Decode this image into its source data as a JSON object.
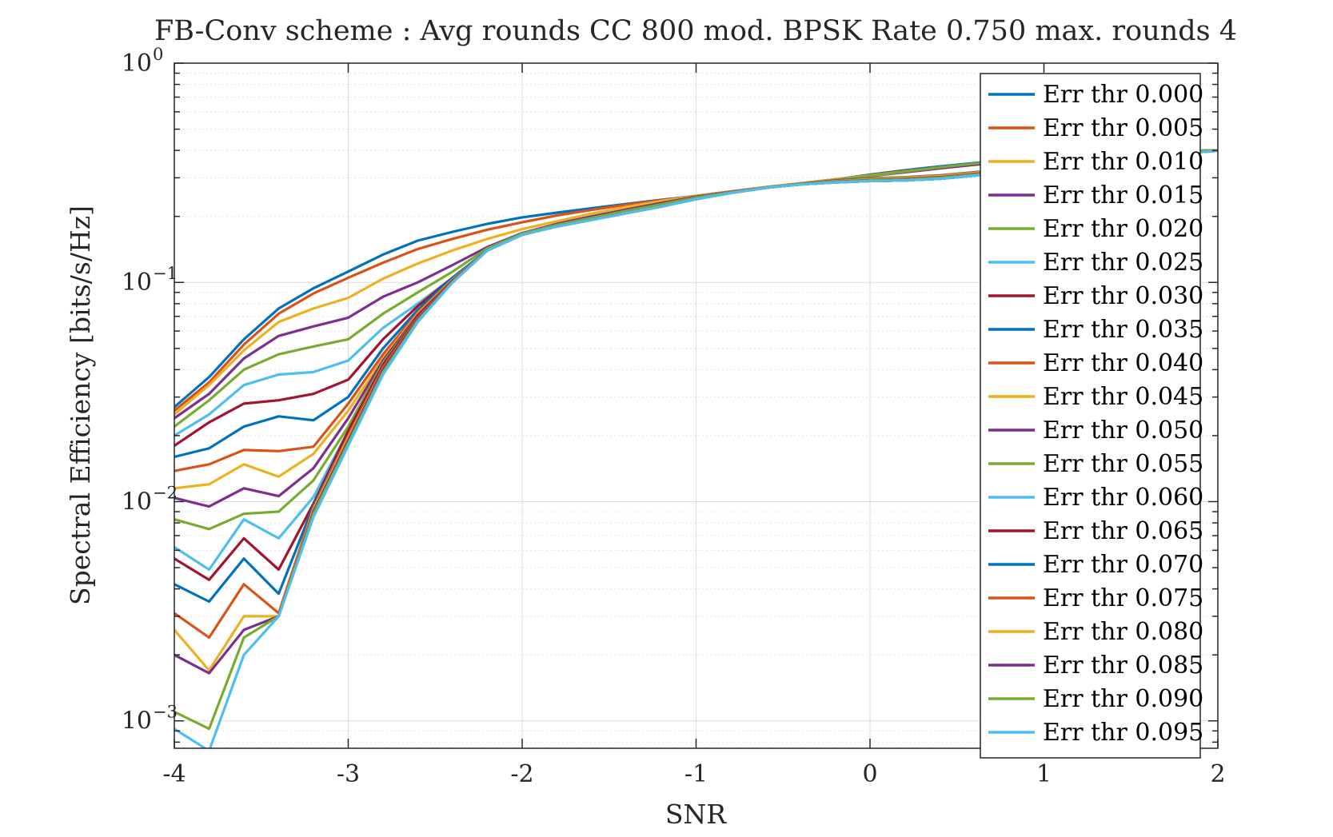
{
  "chart_data": {
    "type": "line",
    "title": "FB-Conv scheme : Avg rounds CC 800 mod. BPSK Rate 0.750 max. rounds 4",
    "xlabel": "SNR",
    "ylabel": "Spectral Efficiency [bits/s/Hz]",
    "xlim": [
      -4,
      2
    ],
    "ylim": [
      0.00075,
      1
    ],
    "yscale": "log",
    "grid": true,
    "legend_position": "right (overlapping plot area)",
    "x_ticks": [
      "-4",
      "-3",
      "-2",
      "-1",
      "0",
      "1",
      "2"
    ],
    "x_tick_values": [
      -4,
      -3,
      -2,
      -1,
      0,
      1,
      2
    ],
    "y_ticks": [
      {
        "value": 0.001,
        "base": "10",
        "exp": "−3"
      },
      {
        "value": 0.01,
        "base": "10",
        "exp": "−2"
      },
      {
        "value": 0.1,
        "base": "10",
        "exp": "−1"
      },
      {
        "value": 1,
        "base": "10",
        "exp": "0"
      }
    ],
    "x": [
      -4,
      -3.8,
      -3.6,
      -3.4,
      -3.2,
      -3,
      -2.8,
      -2.6,
      -2.4,
      -2.2,
      -2,
      -1.8,
      -1.6,
      -1.4,
      -1.2,
      -1,
      -0.8,
      -0.6,
      -0.4,
      -0.2,
      0,
      0.2,
      0.4,
      0.6,
      0.8,
      1,
      1.2,
      1.4,
      1.6,
      1.8,
      2
    ],
    "series": [
      {
        "name": "Err thr 0.000",
        "color": "#0072BD",
        "values": [
          0.027,
          0.037,
          0.055,
          0.076,
          0.094,
          0.112,
          0.134,
          0.155,
          0.17,
          0.185,
          0.198,
          0.208,
          0.218,
          0.228,
          0.238,
          0.248,
          0.26,
          0.272,
          0.283,
          0.295,
          0.31,
          0.325,
          0.338,
          0.35,
          0.362,
          0.372,
          0.38,
          0.387,
          0.393,
          0.398,
          0.4
        ]
      },
      {
        "name": "Err thr 0.005",
        "color": "#D95319",
        "values": [
          0.026,
          0.035,
          0.052,
          0.072,
          0.089,
          0.105,
          0.123,
          0.142,
          0.158,
          0.174,
          0.188,
          0.202,
          0.214,
          0.226,
          0.237,
          0.248,
          0.26,
          0.272,
          0.283,
          0.295,
          0.308,
          0.322,
          0.335,
          0.347,
          0.36,
          0.37,
          0.379,
          0.386,
          0.392,
          0.397,
          0.4
        ]
      },
      {
        "name": "Err thr 0.010",
        "color": "#EDB120",
        "values": [
          0.025,
          0.034,
          0.049,
          0.066,
          0.076,
          0.085,
          0.104,
          0.122,
          0.14,
          0.158,
          0.175,
          0.19,
          0.206,
          0.221,
          0.235,
          0.248,
          0.26,
          0.272,
          0.283,
          0.295,
          0.307,
          0.32,
          0.333,
          0.346,
          0.358,
          0.369,
          0.378,
          0.386,
          0.392,
          0.397,
          0.4
        ]
      },
      {
        "name": "Err thr 0.015",
        "color": "#7E2F8E",
        "values": [
          0.024,
          0.031,
          0.045,
          0.057,
          0.063,
          0.069,
          0.086,
          0.1,
          0.12,
          0.145,
          0.168,
          0.185,
          0.2,
          0.215,
          0.23,
          0.246,
          0.259,
          0.271,
          0.282,
          0.293,
          0.305,
          0.318,
          0.331,
          0.344,
          0.356,
          0.367,
          0.377,
          0.385,
          0.391,
          0.396,
          0.4
        ]
      },
      {
        "name": "Err thr 0.020",
        "color": "#77AC30",
        "values": [
          0.022,
          0.029,
          0.04,
          0.047,
          0.051,
          0.055,
          0.072,
          0.09,
          0.112,
          0.143,
          0.167,
          0.183,
          0.197,
          0.212,
          0.227,
          0.244,
          0.258,
          0.271,
          0.282,
          0.293,
          0.305,
          0.32,
          0.335,
          0.348,
          0.36,
          0.37,
          0.378,
          0.386,
          0.392,
          0.397,
          0.4
        ]
      },
      {
        "name": "Err thr 0.025",
        "color": "#4DBEEE",
        "values": [
          0.02,
          0.025,
          0.034,
          0.038,
          0.039,
          0.044,
          0.062,
          0.08,
          0.105,
          0.14,
          0.165,
          0.18,
          0.193,
          0.207,
          0.222,
          0.24,
          0.256,
          0.27,
          0.281,
          0.291,
          0.298,
          0.3,
          0.303,
          0.312,
          0.323,
          0.337,
          0.352,
          0.366,
          0.379,
          0.39,
          0.398
        ]
      },
      {
        "name": "Err thr 0.030",
        "color": "#A2142F",
        "values": [
          0.018,
          0.023,
          0.028,
          0.029,
          0.031,
          0.036,
          0.055,
          0.078,
          0.105,
          0.14,
          0.165,
          0.18,
          0.193,
          0.207,
          0.222,
          0.24,
          0.256,
          0.27,
          0.281,
          0.291,
          0.298,
          0.301,
          0.306,
          0.315,
          0.326,
          0.34,
          0.354,
          0.367,
          0.38,
          0.39,
          0.398
        ]
      },
      {
        "name": "Err thr 0.035",
        "color": "#0072BD",
        "values": [
          0.016,
          0.0175,
          0.022,
          0.0245,
          0.0235,
          0.03,
          0.05,
          0.075,
          0.105,
          0.14,
          0.165,
          0.18,
          0.193,
          0.207,
          0.222,
          0.24,
          0.256,
          0.27,
          0.281,
          0.291,
          0.298,
          0.302,
          0.308,
          0.318,
          0.329,
          0.342,
          0.356,
          0.369,
          0.381,
          0.391,
          0.398
        ]
      },
      {
        "name": "Err thr 0.040",
        "color": "#D95319",
        "values": [
          0.0138,
          0.0148,
          0.0172,
          0.017,
          0.0178,
          0.028,
          0.047,
          0.073,
          0.103,
          0.14,
          0.165,
          0.18,
          0.193,
          0.207,
          0.222,
          0.24,
          0.256,
          0.27,
          0.281,
          0.29,
          0.297,
          0.301,
          0.307,
          0.317,
          0.328,
          0.341,
          0.355,
          0.368,
          0.38,
          0.39,
          0.398
        ]
      },
      {
        "name": "Err thr 0.045",
        "color": "#EDB120",
        "values": [
          0.0115,
          0.012,
          0.0148,
          0.013,
          0.0165,
          0.026,
          0.045,
          0.072,
          0.103,
          0.14,
          0.165,
          0.18,
          0.193,
          0.207,
          0.222,
          0.24,
          0.256,
          0.27,
          0.28,
          0.289,
          0.295,
          0.3,
          0.305,
          0.315,
          0.327,
          0.34,
          0.354,
          0.367,
          0.38,
          0.39,
          0.398
        ]
      },
      {
        "name": "Err thr 0.050",
        "color": "#7E2F8E",
        "values": [
          0.0104,
          0.0095,
          0.0115,
          0.0106,
          0.0142,
          0.024,
          0.044,
          0.071,
          0.102,
          0.14,
          0.165,
          0.18,
          0.193,
          0.207,
          0.222,
          0.24,
          0.256,
          0.27,
          0.28,
          0.288,
          0.293,
          0.297,
          0.302,
          0.312,
          0.325,
          0.338,
          0.353,
          0.366,
          0.379,
          0.39,
          0.398
        ]
      },
      {
        "name": "Err thr 0.055",
        "color": "#77AC30",
        "values": [
          0.0083,
          0.0075,
          0.0088,
          0.009,
          0.0125,
          0.022,
          0.043,
          0.07,
          0.102,
          0.14,
          0.165,
          0.18,
          0.193,
          0.207,
          0.222,
          0.24,
          0.256,
          0.27,
          0.28,
          0.287,
          0.292,
          0.295,
          0.3,
          0.31,
          0.323,
          0.337,
          0.352,
          0.365,
          0.378,
          0.389,
          0.398
        ]
      },
      {
        "name": "Err thr 0.060",
        "color": "#4DBEEE",
        "values": [
          0.0062,
          0.0049,
          0.0083,
          0.0068,
          0.0105,
          0.021,
          0.042,
          0.07,
          0.102,
          0.14,
          0.165,
          0.18,
          0.193,
          0.207,
          0.222,
          0.24,
          0.256,
          0.27,
          0.28,
          0.286,
          0.29,
          0.292,
          0.297,
          0.307,
          0.321,
          0.336,
          0.351,
          0.365,
          0.378,
          0.389,
          0.398
        ]
      },
      {
        "name": "Err thr 0.065",
        "color": "#A2142F",
        "values": [
          0.0055,
          0.0044,
          0.0068,
          0.0049,
          0.0098,
          0.021,
          0.042,
          0.07,
          0.102,
          0.14,
          0.165,
          0.18,
          0.193,
          0.207,
          0.222,
          0.24,
          0.256,
          0.27,
          0.28,
          0.286,
          0.29,
          0.292,
          0.297,
          0.307,
          0.321,
          0.336,
          0.351,
          0.365,
          0.378,
          0.389,
          0.398
        ]
      },
      {
        "name": "Err thr 0.070",
        "color": "#0072BD",
        "values": [
          0.0042,
          0.0035,
          0.0055,
          0.0038,
          0.0096,
          0.02,
          0.041,
          0.069,
          0.101,
          0.14,
          0.165,
          0.18,
          0.193,
          0.207,
          0.222,
          0.24,
          0.256,
          0.27,
          0.28,
          0.286,
          0.29,
          0.292,
          0.297,
          0.307,
          0.321,
          0.336,
          0.351,
          0.365,
          0.378,
          0.389,
          0.398
        ]
      },
      {
        "name": "Err thr 0.075",
        "color": "#D95319",
        "values": [
          0.0031,
          0.0024,
          0.0042,
          0.0031,
          0.0094,
          0.02,
          0.041,
          0.069,
          0.101,
          0.14,
          0.165,
          0.18,
          0.193,
          0.207,
          0.222,
          0.24,
          0.256,
          0.27,
          0.28,
          0.286,
          0.29,
          0.292,
          0.297,
          0.307,
          0.321,
          0.336,
          0.351,
          0.365,
          0.378,
          0.389,
          0.398
        ]
      },
      {
        "name": "Err thr 0.080",
        "color": "#EDB120",
        "values": [
          0.0026,
          0.0017,
          0.003,
          0.003,
          0.0092,
          0.0195,
          0.04,
          0.068,
          0.1,
          0.14,
          0.165,
          0.18,
          0.193,
          0.207,
          0.222,
          0.24,
          0.256,
          0.27,
          0.28,
          0.286,
          0.29,
          0.292,
          0.297,
          0.307,
          0.321,
          0.336,
          0.351,
          0.365,
          0.378,
          0.389,
          0.398
        ]
      },
      {
        "name": "Err thr 0.085",
        "color": "#7E2F8E",
        "values": [
          0.002,
          0.00165,
          0.0026,
          0.003,
          0.009,
          0.019,
          0.04,
          0.068,
          0.1,
          0.14,
          0.165,
          0.18,
          0.193,
          0.207,
          0.222,
          0.24,
          0.256,
          0.27,
          0.28,
          0.286,
          0.29,
          0.292,
          0.297,
          0.307,
          0.321,
          0.336,
          0.351,
          0.365,
          0.378,
          0.389,
          0.398
        ]
      },
      {
        "name": "Err thr 0.090",
        "color": "#77AC30",
        "values": [
          0.0011,
          0.00092,
          0.0024,
          0.003,
          0.0088,
          0.0185,
          0.039,
          0.067,
          0.1,
          0.14,
          0.165,
          0.18,
          0.193,
          0.207,
          0.222,
          0.24,
          0.256,
          0.27,
          0.28,
          0.286,
          0.29,
          0.292,
          0.297,
          0.307,
          0.321,
          0.336,
          0.351,
          0.365,
          0.378,
          0.389,
          0.398
        ]
      },
      {
        "name": "Err thr 0.095",
        "color": "#4DBEEE",
        "values": [
          0.00092,
          0.00073,
          0.002,
          0.003,
          0.0085,
          0.018,
          0.038,
          0.066,
          0.1,
          0.14,
          0.165,
          0.18,
          0.193,
          0.207,
          0.222,
          0.24,
          0.256,
          0.27,
          0.28,
          0.286,
          0.29,
          0.292,
          0.297,
          0.307,
          0.321,
          0.336,
          0.351,
          0.365,
          0.378,
          0.389,
          0.398
        ]
      }
    ]
  }
}
